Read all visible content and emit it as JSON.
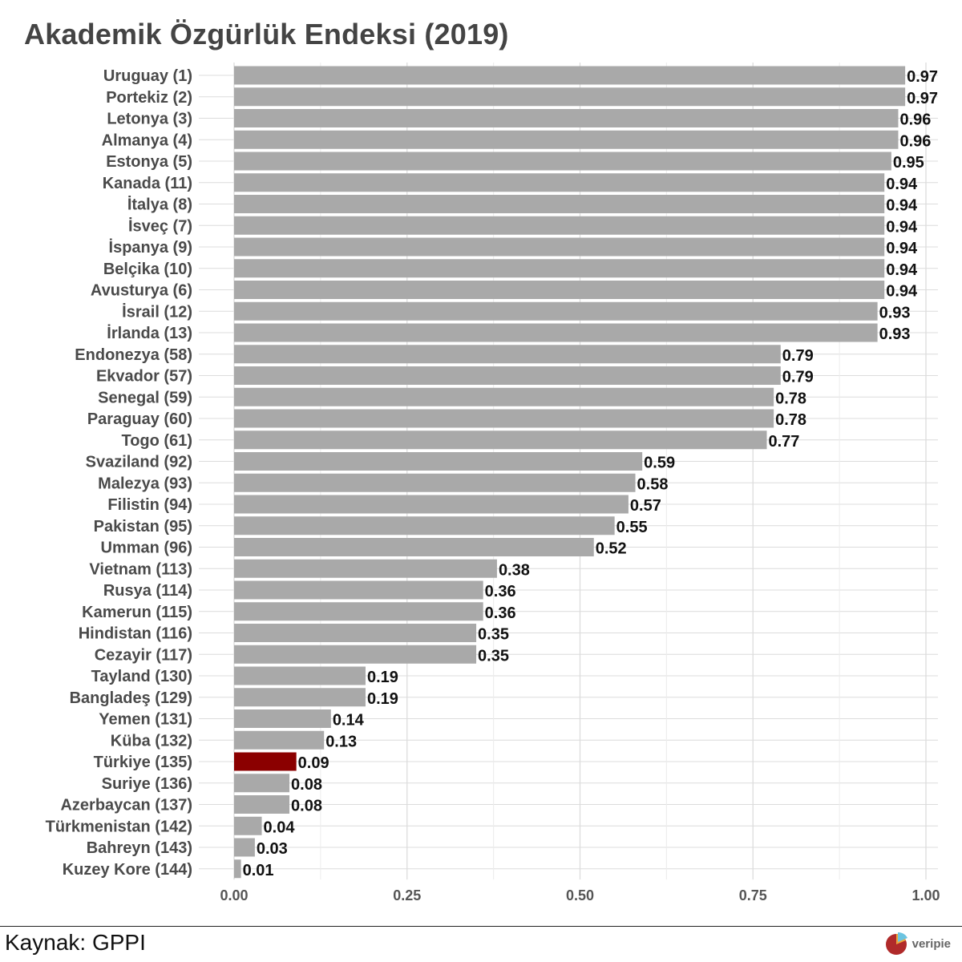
{
  "title": "Akademik Özgürlük Endeksi (2019)",
  "source": "Kaynak: GPPI",
  "brand": {
    "name": "veripie",
    "icon": "pie-chart-logo-icon"
  },
  "colors": {
    "bar": "#a9a9a9",
    "highlight": "#8b0000",
    "grid": "#dcdcdc",
    "title": "#444444"
  },
  "chart_data": {
    "type": "bar",
    "orientation": "horizontal",
    "title": "Akademik Özgürlük Endeksi (2019)",
    "xlabel": "",
    "ylabel": "",
    "xlim": [
      0,
      1
    ],
    "x_ticks": [
      "0.00",
      "0.25",
      "0.50",
      "0.75",
      "1.00"
    ],
    "grid": true,
    "legend": "none",
    "highlight_category": "Türkiye (135)",
    "categories": [
      "Uruguay (1)",
      "Portekiz (2)",
      "Letonya (3)",
      "Almanya (4)",
      "Estonya (5)",
      "Kanada (11)",
      "İtalya (8)",
      "İsveç (7)",
      "İspanya (9)",
      "Belçika (10)",
      "Avusturya (6)",
      "İsrail (12)",
      "İrlanda (13)",
      "Endonezya (58)",
      "Ekvador (57)",
      "Senegal (59)",
      "Paraguay (60)",
      "Togo (61)",
      "Svaziland (92)",
      "Malezya (93)",
      "Filistin (94)",
      "Pakistan (95)",
      "Umman (96)",
      "Vietnam (113)",
      "Rusya (114)",
      "Kamerun (115)",
      "Hindistan (116)",
      "Cezayir (117)",
      "Tayland (130)",
      "Bangladeş (129)",
      "Yemen (131)",
      "Küba (132)",
      "Türkiye (135)",
      "Suriye (136)",
      "Azerbaycan (137)",
      "Türkmenistan (142)",
      "Bahreyn (143)",
      "Kuzey Kore (144)"
    ],
    "values": [
      0.97,
      0.97,
      0.96,
      0.96,
      0.95,
      0.94,
      0.94,
      0.94,
      0.94,
      0.94,
      0.94,
      0.93,
      0.93,
      0.79,
      0.79,
      0.78,
      0.78,
      0.77,
      0.59,
      0.58,
      0.57,
      0.55,
      0.52,
      0.38,
      0.36,
      0.36,
      0.35,
      0.35,
      0.19,
      0.19,
      0.14,
      0.13,
      0.09,
      0.08,
      0.08,
      0.04,
      0.03,
      0.01
    ],
    "value_labels": [
      "0.97",
      "0.97",
      "0.96",
      "0.96",
      "0.95",
      "0.94",
      "0.94",
      "0.94",
      "0.94",
      "0.94",
      "0.94",
      "0.93",
      "0.93",
      "0.79",
      "0.79",
      "0.78",
      "0.78",
      "0.77",
      "0.59",
      "0.58",
      "0.57",
      "0.55",
      "0.52",
      "0.38",
      "0.36",
      "0.36",
      "0.35",
      "0.35",
      "0.19",
      "0.19",
      "0.14",
      "0.13",
      "0.09",
      "0.08",
      "0.08",
      "0.04",
      "0.03",
      "0.01"
    ]
  }
}
